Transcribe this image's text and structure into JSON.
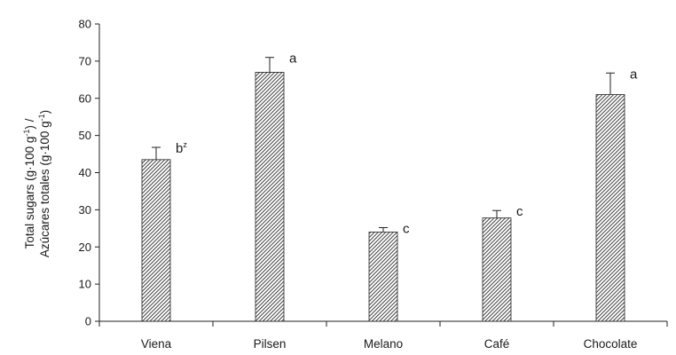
{
  "chart_data": {
    "type": "bar",
    "title": "",
    "xlabel": "",
    "ylabel_line1": "Total sugars (g·100 g",
    "ylabel_line1_sup": "-1",
    "ylabel_line1_end": ") /",
    "ylabel_line2": "Azúcares totales (g·100 g",
    "ylabel_line2_sup": "-1",
    "ylabel_line2_end": ")",
    "ylim": [
      0,
      80
    ],
    "yticks": [
      0,
      10,
      20,
      30,
      40,
      50,
      60,
      70,
      80
    ],
    "grid": false,
    "categories": [
      "Viena",
      "Pilsen",
      "Melano",
      "Café",
      "Chocolate"
    ],
    "values": [
      43.5,
      67,
      24,
      27.8,
      61
    ],
    "errors": [
      3.3,
      4,
      1.2,
      2,
      5.8
    ],
    "significance": [
      {
        "letter": "b",
        "sup": "z"
      },
      {
        "letter": "a",
        "sup": ""
      },
      {
        "letter": "c",
        "sup": ""
      },
      {
        "letter": "c",
        "sup": ""
      },
      {
        "letter": "a",
        "sup": ""
      }
    ],
    "bar_fill": "hatched",
    "colors": {
      "bar": "#333333",
      "hatch_bg": "#ffffff",
      "axis": "#222222"
    }
  }
}
